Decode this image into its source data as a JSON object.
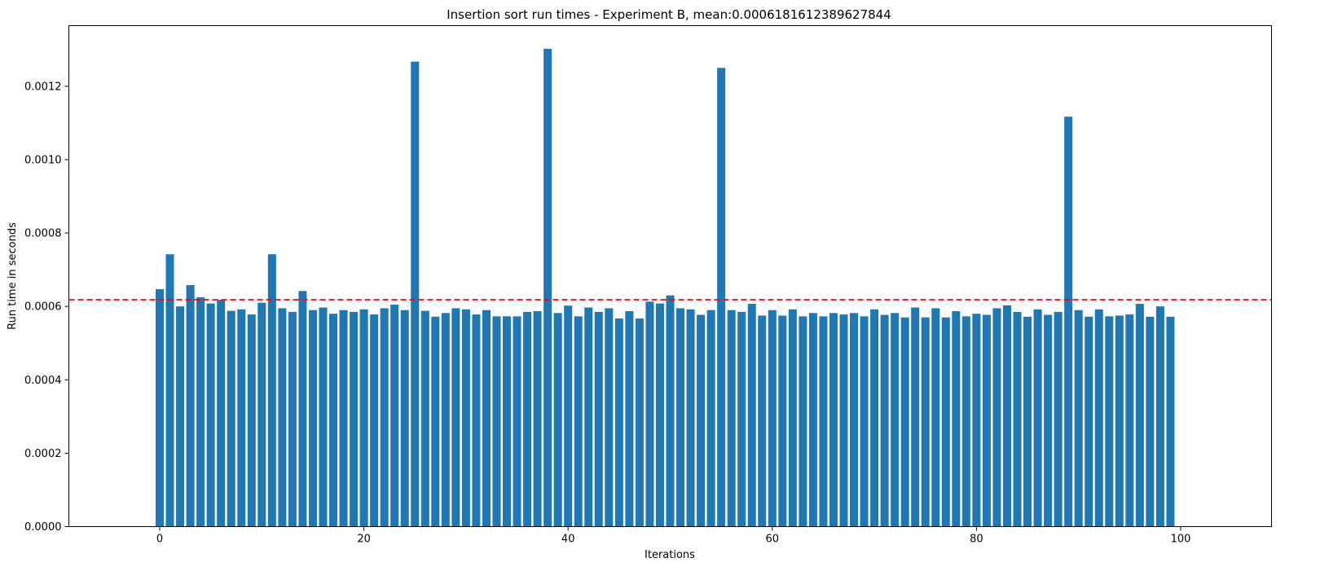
{
  "chart_data": {
    "type": "bar",
    "title": "Insertion sort run times - Experiment B, mean:0.0006181612389627844",
    "xlabel": "Iterations",
    "ylabel": "Run time in seconds",
    "xlim": [
      -8.9,
      108.9
    ],
    "ylim": [
      0,
      0.001365
    ],
    "x_ticks": [
      0,
      20,
      40,
      60,
      80,
      100
    ],
    "x_tick_labels": [
      "0",
      "20",
      "40",
      "60",
      "80",
      "100"
    ],
    "y_ticks": [
      0,
      0.0002,
      0.0004,
      0.0006,
      0.0008,
      0.001,
      0.0012
    ],
    "y_tick_labels": [
      "0.0000",
      "0.0002",
      "0.0004",
      "0.0006",
      "0.0008",
      "0.0010",
      "0.0012"
    ],
    "grid": false,
    "bar_color": "#1f77b4",
    "mean": 0.0006181612389627844,
    "mean_line_color": "#ff0000",
    "mean_line_style": "dashed",
    "x": [
      0,
      1,
      2,
      3,
      4,
      5,
      6,
      7,
      8,
      9,
      10,
      11,
      12,
      13,
      14,
      15,
      16,
      17,
      18,
      19,
      20,
      21,
      22,
      23,
      24,
      25,
      26,
      27,
      28,
      29,
      30,
      31,
      32,
      33,
      34,
      35,
      36,
      37,
      38,
      39,
      40,
      41,
      42,
      43,
      44,
      45,
      46,
      47,
      48,
      49,
      50,
      51,
      52,
      53,
      54,
      55,
      56,
      57,
      58,
      59,
      60,
      61,
      62,
      63,
      64,
      65,
      66,
      67,
      68,
      69,
      70,
      71,
      72,
      73,
      74,
      75,
      76,
      77,
      78,
      79,
      80,
      81,
      82,
      83,
      84,
      85,
      86,
      87,
      88,
      89,
      90,
      91,
      92,
      93,
      94,
      95,
      96,
      97,
      98,
      99
    ],
    "values": [
      0.000647,
      0.000742,
      0.0006,
      0.000658,
      0.000625,
      0.000608,
      0.000618,
      0.000588,
      0.000592,
      0.000578,
      0.00061,
      0.000742,
      0.000595,
      0.000585,
      0.000642,
      0.00059,
      0.000597,
      0.00058,
      0.00059,
      0.000585,
      0.000592,
      0.000578,
      0.000595,
      0.000605,
      0.00059,
      0.001267,
      0.000588,
      0.000572,
      0.000582,
      0.000595,
      0.000592,
      0.000578,
      0.00059,
      0.000573,
      0.000573,
      0.000573,
      0.000585,
      0.000587,
      0.001302,
      0.000582,
      0.000602,
      0.000573,
      0.000597,
      0.000585,
      0.000595,
      0.000567,
      0.000587,
      0.000567,
      0.000613,
      0.000608,
      0.00063,
      0.000595,
      0.000592,
      0.000577,
      0.00059,
      0.00125,
      0.00059,
      0.000585,
      0.000607,
      0.000575,
      0.00059,
      0.000575,
      0.000592,
      0.000573,
      0.000582,
      0.000573,
      0.000582,
      0.000578,
      0.000582,
      0.000573,
      0.000592,
      0.000577,
      0.000582,
      0.00057,
      0.000597,
      0.00057,
      0.000595,
      0.00057,
      0.000587,
      0.000573,
      0.00058,
      0.000577,
      0.000595,
      0.000603,
      0.000585,
      0.000572,
      0.000592,
      0.000577,
      0.000585,
      0.001117,
      0.00059,
      0.000572,
      0.000592,
      0.000573,
      0.000575,
      0.000578,
      0.000607,
      0.000572,
      0.0006,
      0.000572
    ]
  }
}
